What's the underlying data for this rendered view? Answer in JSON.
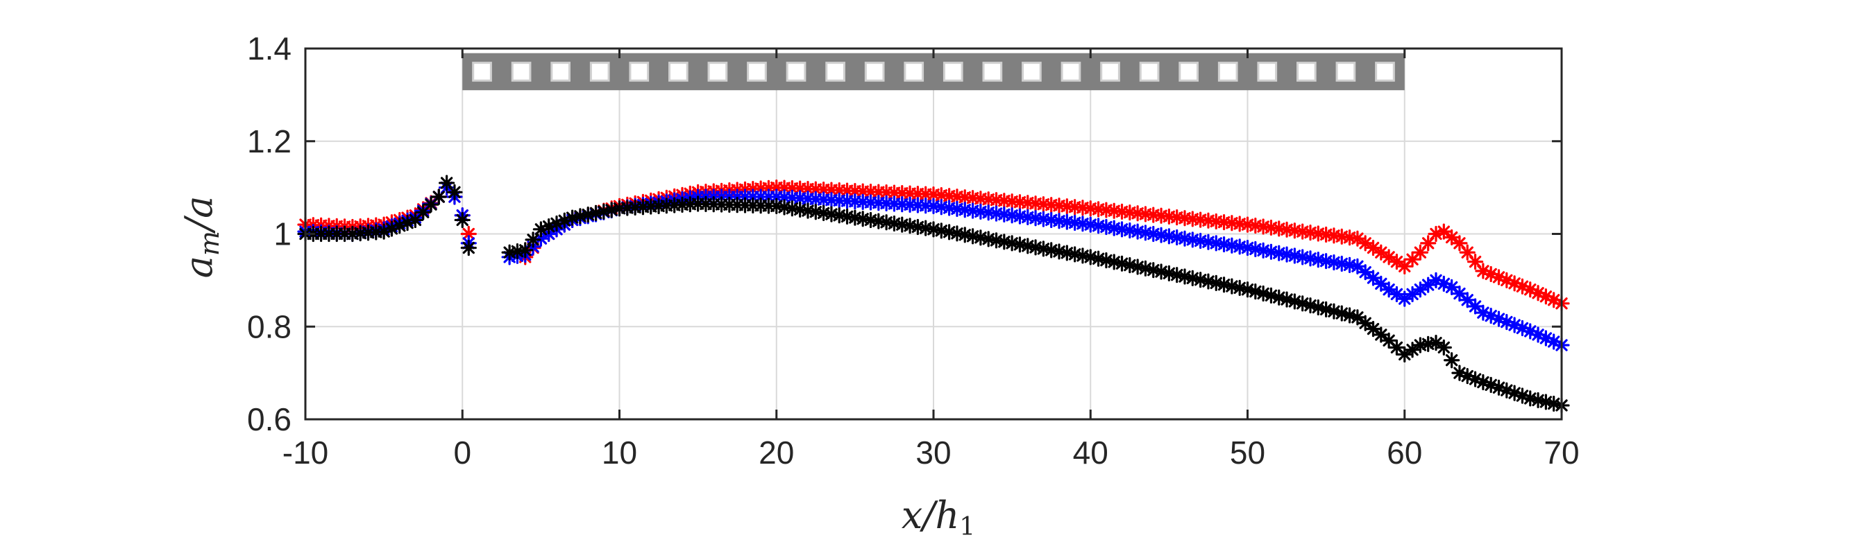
{
  "chart_data": {
    "type": "scatter",
    "title": "",
    "xlabel": "x/h",
    "xlabel_sub": "1",
    "ylabel": "a",
    "ylabel_sub": "m",
    "ylabel_tail": "/a",
    "xlim": [
      -10,
      70
    ],
    "ylim": [
      0.6,
      1.4
    ],
    "xticks": [
      "-10",
      "0",
      "10",
      "20",
      "30",
      "40",
      "50",
      "60",
      "70"
    ],
    "yticks": [
      "0.6",
      "0.8",
      "1",
      "1.2",
      "1.4"
    ],
    "grid": true,
    "marker": "*",
    "legend": "none",
    "structure_bar": {
      "x_start": 0,
      "x_end": 60,
      "y_top": 1.39,
      "y_bottom": 1.31,
      "blocks": 24,
      "color": "#808080"
    },
    "series": [
      {
        "color": "#ff0000",
        "keypoints": [
          [
            -10,
            1.02
          ],
          [
            -7,
            1.015
          ],
          [
            -5,
            1.02
          ],
          [
            -3,
            1.04
          ],
          [
            -1.5,
            1.08
          ],
          [
            -1,
            1.1
          ],
          [
            -0.5,
            1.08
          ],
          [
            0,
            1.04
          ],
          [
            0.4,
            1.0
          ],
          [
            4,
            0.95
          ],
          [
            5,
            0.99
          ],
          [
            7,
            1.03
          ],
          [
            10,
            1.06
          ],
          [
            15,
            1.09
          ],
          [
            20,
            1.1
          ],
          [
            30,
            1.085
          ],
          [
            40,
            1.055
          ],
          [
            50,
            1.02
          ],
          [
            57,
            0.99
          ],
          [
            59,
            0.95
          ],
          [
            60,
            0.93
          ],
          [
            61,
            0.96
          ],
          [
            62,
            1.0
          ],
          [
            62.5,
            1.005
          ],
          [
            63.5,
            0.98
          ],
          [
            65,
            0.92
          ],
          [
            68,
            0.88
          ],
          [
            70,
            0.85
          ]
        ]
      },
      {
        "color": "#0000ff",
        "keypoints": [
          [
            -10,
            1.005
          ],
          [
            -7,
            1.0
          ],
          [
            -5,
            1.01
          ],
          [
            -3,
            1.035
          ],
          [
            -1.5,
            1.08
          ],
          [
            -1,
            1.1
          ],
          [
            -0.5,
            1.08
          ],
          [
            0,
            1.04
          ],
          [
            0.4,
            0.98
          ],
          [
            3,
            0.95
          ],
          [
            4,
            0.955
          ],
          [
            5,
            0.99
          ],
          [
            7,
            1.03
          ],
          [
            10,
            1.055
          ],
          [
            15,
            1.08
          ],
          [
            20,
            1.08
          ],
          [
            30,
            1.06
          ],
          [
            40,
            1.02
          ],
          [
            50,
            0.97
          ],
          [
            57,
            0.93
          ],
          [
            59,
            0.88
          ],
          [
            60,
            0.86
          ],
          [
            61,
            0.88
          ],
          [
            62,
            0.9
          ],
          [
            63,
            0.885
          ],
          [
            65,
            0.83
          ],
          [
            68,
            0.79
          ],
          [
            70,
            0.76
          ]
        ]
      },
      {
        "color": "#000000",
        "keypoints": [
          [
            -10,
            1.0
          ],
          [
            -7,
            1.0
          ],
          [
            -5,
            1.005
          ],
          [
            -3,
            1.03
          ],
          [
            -1.5,
            1.08
          ],
          [
            -1,
            1.11
          ],
          [
            -0.5,
            1.09
          ],
          [
            0,
            1.03
          ],
          [
            0.4,
            0.97
          ],
          [
            3,
            0.96
          ],
          [
            4,
            0.965
          ],
          [
            5,
            1.01
          ],
          [
            7,
            1.035
          ],
          [
            10,
            1.055
          ],
          [
            15,
            1.065
          ],
          [
            20,
            1.06
          ],
          [
            30,
            1.01
          ],
          [
            40,
            0.95
          ],
          [
            50,
            0.88
          ],
          [
            57,
            0.82
          ],
          [
            59,
            0.77
          ],
          [
            60,
            0.74
          ],
          [
            61,
            0.76
          ],
          [
            62,
            0.765
          ],
          [
            62.5,
            0.755
          ],
          [
            63.5,
            0.7
          ],
          [
            65,
            0.68
          ],
          [
            68,
            0.645
          ],
          [
            70,
            0.63
          ]
        ]
      }
    ]
  }
}
